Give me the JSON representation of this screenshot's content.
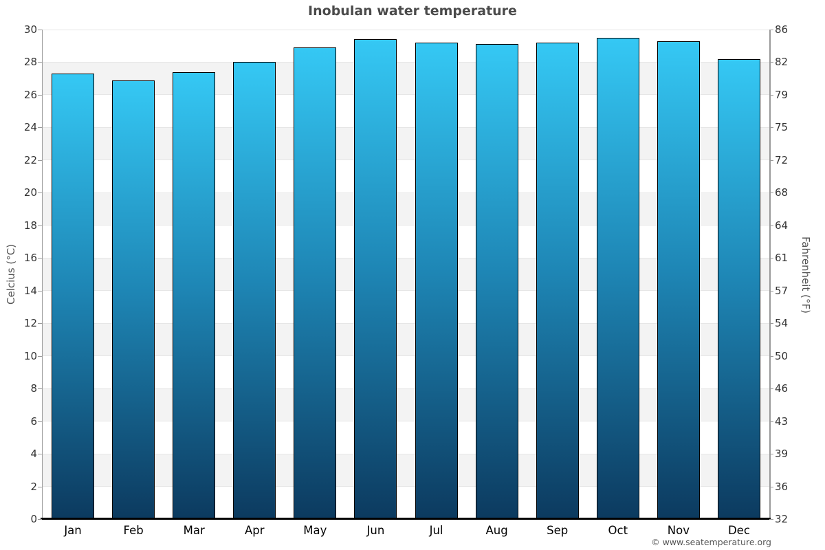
{
  "header": {
    "title": "Inobulan water temperature"
  },
  "footer": {
    "copyright": "© www.seatemperature.org"
  },
  "chart_data": {
    "type": "bar",
    "title": "Inobulan water temperature",
    "categories": [
      "Jan",
      "Feb",
      "Mar",
      "Apr",
      "May",
      "Jun",
      "Jul",
      "Aug",
      "Sep",
      "Oct",
      "Nov",
      "Dec"
    ],
    "values": [
      27.3,
      26.9,
      27.4,
      28.0,
      28.9,
      29.4,
      29.2,
      29.1,
      29.2,
      29.5,
      29.3,
      28.2
    ],
    "series_name": "Water temperature",
    "xlabel": "",
    "ylabel_left": "Celcius (°C)",
    "ylabel_right": "Fahrenheit (°F)",
    "ylim": [
      0,
      30
    ],
    "yticks_celsius": [
      0,
      2,
      4,
      6,
      8,
      10,
      12,
      14,
      16,
      18,
      20,
      22,
      24,
      26,
      28,
      30
    ],
    "yticks_fahrenheit": [
      32,
      36,
      39,
      43,
      46,
      50,
      54,
      57,
      61,
      64,
      68,
      72,
      75,
      79,
      82,
      86
    ],
    "grid": "horizontal gridlines with alternating gray bands",
    "legend": "none",
    "colors": {
      "bar_gradient_top": "#35c8f4",
      "bar_gradient_mid": "#1e86b5",
      "bar_gradient_bottom": "#0c3a5f",
      "bar_border": "#000000",
      "band_fill": "#f3f3f3",
      "gridline": "#e6e6e6",
      "axis_line": "#999999",
      "baseline": "#000000",
      "title_text": "#4a4a4a",
      "tick_text": "#333333",
      "month_text": "#000000",
      "axis_label_text": "#555555",
      "copyright_text": "#555555"
    }
  }
}
